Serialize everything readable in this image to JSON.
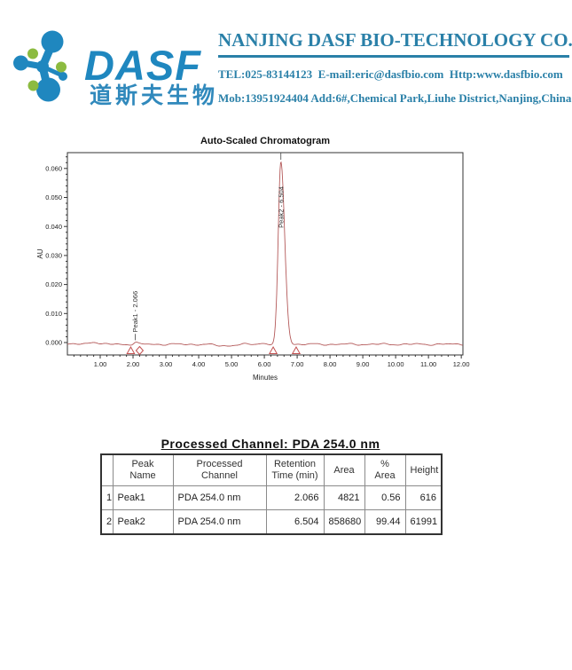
{
  "header": {
    "logo_text": "DASF",
    "logo_text_color": "#1f87bf",
    "logo_chinese": "道斯夫生物",
    "logo_chinese_color": "#3089bc",
    "logo_green": "#8cbb40",
    "brand_teal": "#2a80a8",
    "company_name": "NANJING DASF BIO-TECHNOLOGY CO.,LTD",
    "contact_line1": "TEL:025-83144123  E-mail:eric@dasfbio.com  Http:www.dasfbio.com",
    "contact_line2": "Mob:13951924404 Add:6#,Chemical Park,Liuhe District,Nanjing,China"
  },
  "chart_data": {
    "type": "line",
    "title": "Auto-Scaled Chromatogram",
    "xlabel": "Minutes",
    "ylabel": "AU",
    "xlim": [
      0,
      12.05
    ],
    "ylim": [
      -0.0043,
      0.0655
    ],
    "x_tick_start": 1,
    "x_tick_end": 12,
    "x_tick_step": 1,
    "x_minor_step": 0.2,
    "x_decimals": 2,
    "y_tick_start": 0,
    "y_tick_end": 0.06,
    "y_tick_step": 0.01,
    "y_minor_step": 0.002,
    "y_decimals": 3,
    "grid": false,
    "legend": "none",
    "trace_color": "#b45a5a",
    "marker_color": "#c25050",
    "baseline_au": -0.0006,
    "peaks": [
      {
        "name": "Peak1",
        "retention_time": 2.066,
        "height_au": 0.0006,
        "area": 4821,
        "pct_area": 0.56,
        "height_uv": 616,
        "sigma_left": 0.05,
        "sigma_right": 0.07,
        "label": "Peak1 - 2.066",
        "label_y_au": 0.0035,
        "leader_au": [
          0.0008,
          0.003
        ],
        "markers": [
          {
            "x": 1.93,
            "shape": "triangle"
          },
          {
            "x": 2.2,
            "shape": "diamond"
          }
        ]
      },
      {
        "name": "Peak2",
        "retention_time": 6.504,
        "height_au": 0.0626,
        "area": 858680,
        "pct_area": 99.44,
        "height_uv": 61991,
        "sigma_left": 0.08,
        "sigma_right": 0.115,
        "label": "Peak2 - 6.504",
        "label_y_au": 0.0395,
        "leader_au": [
          0.063,
          0.0655
        ],
        "markers": [
          {
            "x": 6.27,
            "shape": "triangle"
          },
          {
            "x": 6.97,
            "shape": "triangle"
          }
        ]
      }
    ]
  },
  "results_table": {
    "title": "Processed Channel: PDA 254.0 nm",
    "columns": [
      "",
      "Peak Name",
      "Processed Channel",
      "Retention Time (min)",
      "Area",
      "% Area",
      "Height"
    ],
    "rows": [
      {
        "index": "1",
        "peak_name": "Peak1",
        "processed_channel": "PDA 254.0 nm",
        "retention_time": "2.066",
        "area": "4821",
        "pct_area": "0.56",
        "height": "616"
      },
      {
        "index": "2",
        "peak_name": "Peak2",
        "processed_channel": "PDA 254.0 nm",
        "retention_time": "6.504",
        "area": "858680",
        "pct_area": "99.44",
        "height": "61991"
      }
    ]
  }
}
